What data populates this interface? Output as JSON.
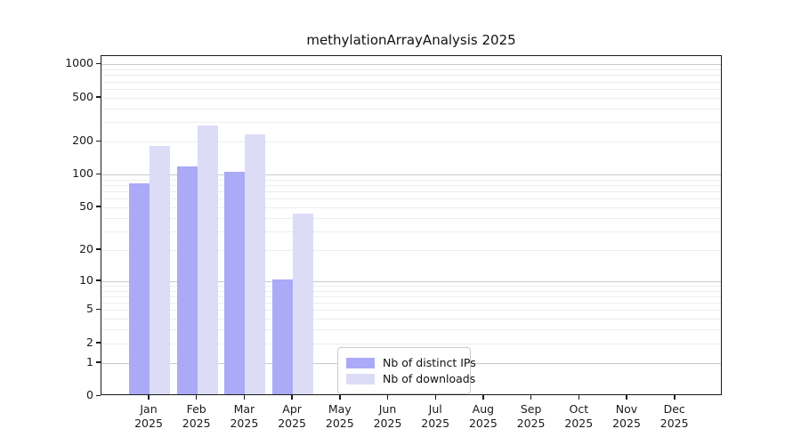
{
  "title": "methylationArrayAnalysis 2025",
  "chart_data": {
    "type": "bar",
    "title": "methylationArrayAnalysis 2025",
    "categories": [
      "Jan",
      "Feb",
      "Mar",
      "Apr",
      "May",
      "Jun",
      "Jul",
      "Aug",
      "Sep",
      "Oct",
      "Nov",
      "Dec"
    ],
    "year": "2025",
    "series": [
      {
        "name": "Nb of distinct IPs",
        "color": "#aaaaf6",
        "values": [
          80,
          115,
          103,
          10,
          0,
          0,
          0,
          0,
          0,
          0,
          0,
          0
        ]
      },
      {
        "name": "Nb of downloads",
        "color": "#dcdcf7",
        "values": [
          175,
          270,
          225,
          42,
          0,
          0,
          0,
          0,
          0,
          0,
          0,
          0
        ]
      }
    ],
    "xlabel": "",
    "ylabel": "",
    "yscale": "log10(1+x)",
    "ylim": [
      0,
      1190
    ],
    "yticks": [
      {
        "value": 1000,
        "label": "1000"
      },
      {
        "value": 500,
        "label": "500"
      },
      {
        "value": 200,
        "label": "200"
      },
      {
        "value": 100,
        "label": "100"
      },
      {
        "value": 50,
        "label": "50"
      },
      {
        "value": 20,
        "label": "20"
      },
      {
        "value": 10,
        "label": "10"
      },
      {
        "value": 5,
        "label": "5"
      },
      {
        "value": 2,
        "label": "2"
      },
      {
        "value": 1,
        "label": "1"
      },
      {
        "value": 0,
        "label": "0"
      }
    ],
    "grid": {
      "major_values": [
        1,
        10,
        100,
        1000
      ],
      "minor_values": [
        2,
        3,
        4,
        5,
        6,
        7,
        8,
        9,
        20,
        30,
        40,
        50,
        60,
        70,
        80,
        90,
        200,
        300,
        400,
        500,
        600,
        700,
        800,
        900
      ],
      "major_color": "#c9c9c9",
      "minor_color": "#ededed"
    },
    "legend_position": "bottom-center"
  },
  "colors": {
    "background": "#ffffff",
    "spine": "#1a1a1a",
    "text": "#1a1a1a",
    "ips_bar": "#aaaaf6",
    "downloads_bar": "#dcdcf7"
  }
}
